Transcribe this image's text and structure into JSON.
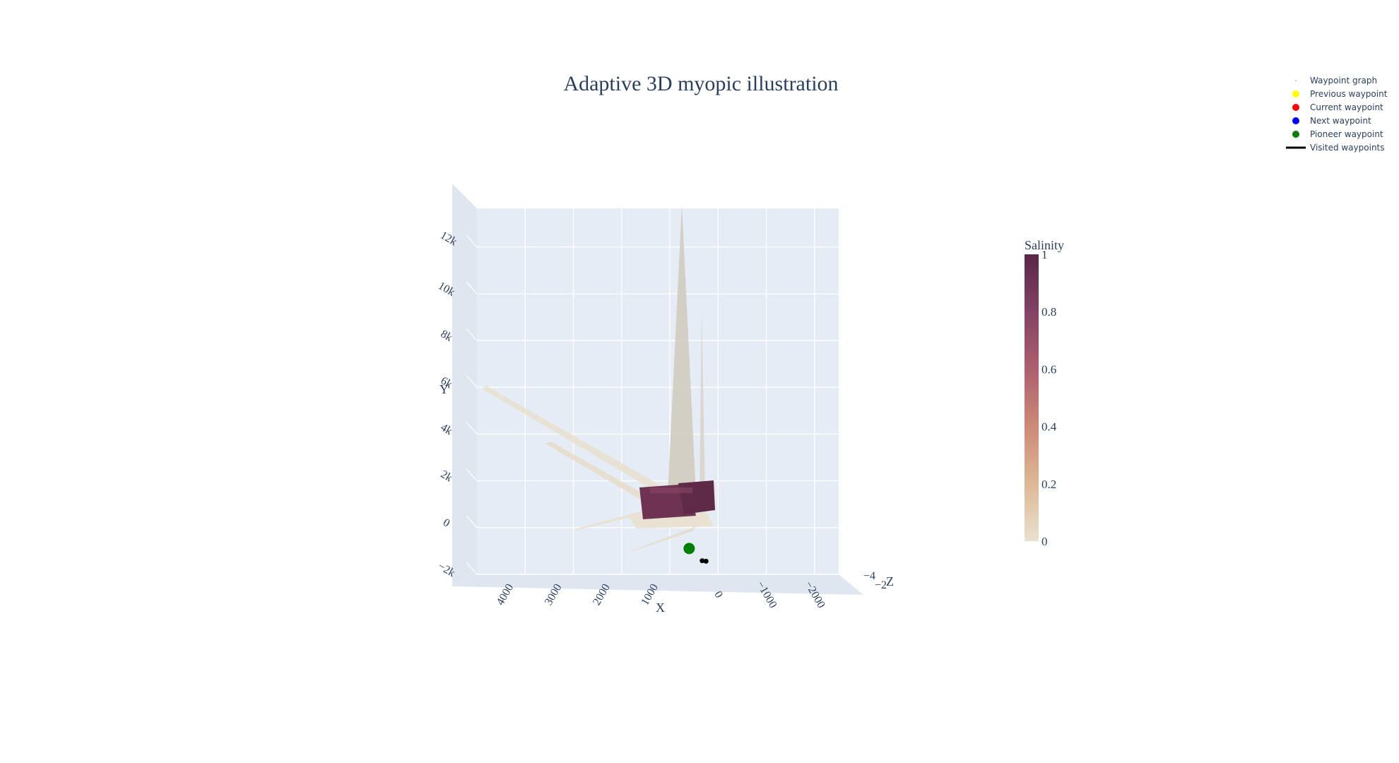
{
  "chart_data": {
    "type": "scatter3d",
    "title": "Adaptive 3D myopic illustration",
    "axes": {
      "x": {
        "label": "X",
        "ticks": [
          "4000",
          "3000",
          "2000",
          "1000",
          "0",
          "−1000",
          "−2000"
        ]
      },
      "y": {
        "label": "Y",
        "ticks": [
          "−2k",
          "0",
          "2k",
          "4k",
          "6k",
          "8k",
          "10k",
          "12k"
        ]
      },
      "z": {
        "label": "Z",
        "ticks": [
          "−4",
          "−2"
        ]
      }
    },
    "legend": {
      "placement": "top-right",
      "items": [
        {
          "label": "Waypoint graph",
          "color": "#d0d0d0",
          "marker": "dot"
        },
        {
          "label": "Previous waypoint",
          "color": "#ffff00",
          "marker": "circle"
        },
        {
          "label": "Current waypoint",
          "color": "#ff0000",
          "marker": "circle"
        },
        {
          "label": "Next waypoint",
          "color": "#0000ff",
          "marker": "circle"
        },
        {
          "label": "Pioneer waypoint",
          "color": "#008000",
          "marker": "circle"
        },
        {
          "label": "Visited waypoints",
          "color": "#000000",
          "marker": "line"
        }
      ]
    },
    "colorbar": {
      "title": "Salinity",
      "ticks": [
        "1",
        "0.8",
        "0.6",
        "0.4",
        "0.2",
        "0"
      ],
      "range": [
        0,
        1
      ],
      "colors": [
        "#e9e1cf",
        "#ddb896",
        "#cc8a77",
        "#ad5f6e",
        "#834363",
        "#5a2745"
      ]
    },
    "points": {
      "pioneer": {
        "x": 600,
        "y": 1100,
        "z": -2,
        "color": "#008000"
      },
      "visited": [
        {
          "x": 330,
          "y": 1000,
          "z": -2
        },
        {
          "x": 250,
          "y": 980,
          "z": -2
        }
      ]
    },
    "grid": true,
    "background": "#e5ecf6"
  }
}
